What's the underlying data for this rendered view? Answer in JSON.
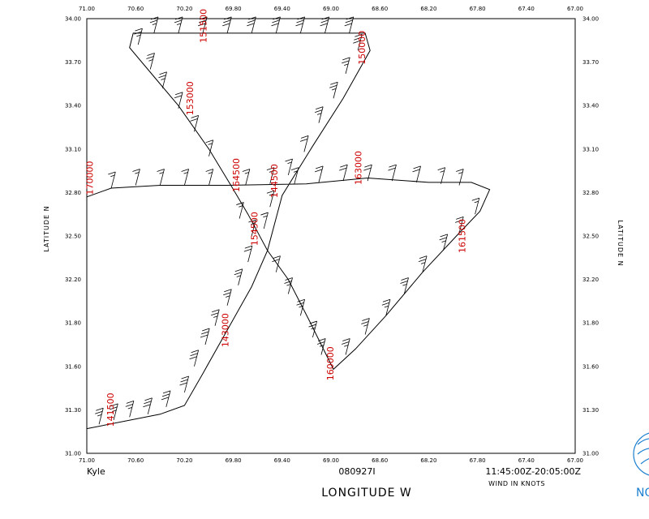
{
  "chart_data": {
    "type": "line",
    "title": "",
    "xlabel": "LONGITUDE  W",
    "ylabel_left": "LATITUDE  N",
    "ylabel_right": "LATITUDE  N",
    "xlim": [
      71.0,
      67.0
    ],
    "ylim": [
      31.0,
      34.0
    ],
    "x_ticks": [
      "71.00",
      "70.60",
      "70.20",
      "69.80",
      "69.40",
      "69.00",
      "68.60",
      "68.20",
      "67.80",
      "67.40",
      "67.00"
    ],
    "y_ticks": [
      "31.00",
      "31.30",
      "31.60",
      "31.80",
      "32.20",
      "32.50",
      "32.80",
      "33.10",
      "33.40",
      "33.70",
      "34.00"
    ],
    "grid": false,
    "footer": {
      "storm": "Kyle",
      "mission": "080927I",
      "time_range": "11:45:00Z-20:05:00Z",
      "units": "WIND IN KNOTS"
    },
    "logo_text": "NO",
    "time_labels": [
      {
        "text": "141500",
        "lon": 70.78,
        "lat": 31.3
      },
      {
        "text": "143000",
        "lon": 69.84,
        "lat": 31.85
      },
      {
        "text": "144500",
        "lon": 69.44,
        "lat": 32.88
      },
      {
        "text": "150000",
        "lon": 68.72,
        "lat": 33.8
      },
      {
        "text": "151500",
        "lon": 70.02,
        "lat": 33.95
      },
      {
        "text": "153000",
        "lon": 70.13,
        "lat": 33.45
      },
      {
        "text": "154500",
        "lon": 69.6,
        "lat": 32.55
      },
      {
        "text": "160000",
        "lon": 68.98,
        "lat": 31.62
      },
      {
        "text": "161500",
        "lon": 67.9,
        "lat": 32.5
      },
      {
        "text": "163000",
        "lon": 68.75,
        "lat": 32.97
      },
      {
        "text": "164500",
        "lon": 69.75,
        "lat": 32.92
      },
      {
        "text": "170000",
        "lon": 70.95,
        "lat": 32.9
      }
    ],
    "series": [
      {
        "points": [
          [
            71.0,
            31.17
          ],
          [
            70.4,
            31.27
          ],
          [
            70.2,
            31.33
          ],
          [
            70.05,
            31.55
          ],
          [
            69.85,
            31.85
          ],
          [
            69.65,
            32.15
          ],
          [
            69.52,
            32.4
          ],
          [
            69.4,
            32.78
          ],
          [
            69.15,
            33.12
          ],
          [
            68.9,
            33.45
          ],
          [
            68.68,
            33.78
          ],
          [
            68.72,
            33.9
          ],
          [
            70.62,
            33.9
          ],
          [
            70.65,
            33.8
          ],
          [
            70.45,
            33.6
          ],
          [
            70.25,
            33.4
          ],
          [
            70.0,
            33.1
          ],
          [
            69.82,
            32.85
          ],
          [
            69.68,
            32.65
          ],
          [
            69.52,
            32.4
          ],
          [
            69.35,
            32.2
          ],
          [
            69.18,
            31.92
          ],
          [
            68.98,
            31.58
          ],
          [
            68.8,
            31.72
          ],
          [
            68.55,
            31.95
          ],
          [
            68.25,
            32.25
          ],
          [
            67.95,
            32.52
          ],
          [
            67.78,
            32.67
          ],
          [
            67.7,
            32.82
          ],
          [
            67.85,
            32.87
          ],
          [
            68.2,
            32.87
          ],
          [
            68.7,
            32.9
          ],
          [
            69.2,
            32.86
          ],
          [
            69.85,
            32.85
          ],
          [
            70.4,
            32.85
          ],
          [
            70.8,
            32.83
          ],
          [
            71.0,
            32.77
          ]
        ],
        "barbs_kt": [
          [
            70.9,
            31.2,
            25
          ],
          [
            70.78,
            31.23,
            25
          ],
          [
            70.65,
            31.25,
            25
          ],
          [
            70.5,
            31.27,
            30
          ],
          [
            70.35,
            31.32,
            30
          ],
          [
            70.2,
            31.42,
            30
          ],
          [
            70.12,
            31.6,
            30
          ],
          [
            70.03,
            31.75,
            30
          ],
          [
            69.95,
            31.88,
            25
          ],
          [
            69.85,
            32.02,
            25
          ],
          [
            69.76,
            32.16,
            25
          ],
          [
            69.68,
            32.32,
            20
          ],
          [
            69.55,
            32.55,
            15
          ],
          [
            69.5,
            32.7,
            15
          ],
          [
            69.35,
            32.92,
            15
          ],
          [
            69.22,
            33.08,
            20
          ],
          [
            69.1,
            33.28,
            25
          ],
          [
            68.98,
            33.45,
            25
          ],
          [
            68.88,
            33.62,
            25
          ],
          [
            68.78,
            33.78,
            30
          ],
          [
            68.85,
            33.9,
            30
          ],
          [
            69.05,
            33.9,
            30
          ],
          [
            69.25,
            33.9,
            30
          ],
          [
            69.45,
            33.9,
            30
          ],
          [
            69.65,
            33.9,
            30
          ],
          [
            69.85,
            33.9,
            30
          ],
          [
            70.05,
            33.9,
            30
          ],
          [
            70.25,
            33.9,
            25
          ],
          [
            70.45,
            33.9,
            25
          ],
          [
            70.58,
            33.82,
            25
          ],
          [
            70.48,
            33.65,
            25
          ],
          [
            70.38,
            33.52,
            25
          ],
          [
            70.25,
            33.38,
            20
          ],
          [
            70.12,
            33.22,
            20
          ],
          [
            70.0,
            33.05,
            15
          ],
          [
            69.75,
            32.62,
            15
          ],
          [
            69.65,
            32.5,
            15
          ],
          [
            69.45,
            32.25,
            20
          ],
          [
            69.35,
            32.1,
            25
          ],
          [
            69.25,
            31.95,
            25
          ],
          [
            69.15,
            31.8,
            25
          ],
          [
            69.08,
            31.68,
            25
          ],
          [
            68.88,
            31.68,
            25
          ],
          [
            68.72,
            31.82,
            25
          ],
          [
            68.55,
            31.95,
            25
          ],
          [
            68.4,
            32.1,
            25
          ],
          [
            68.25,
            32.25,
            25
          ],
          [
            68.08,
            32.4,
            25
          ],
          [
            67.95,
            32.52,
            20
          ],
          [
            67.82,
            32.65,
            15
          ],
          [
            67.95,
            32.85,
            15
          ],
          [
            68.1,
            32.86,
            15
          ],
          [
            68.3,
            32.87,
            20
          ],
          [
            68.5,
            32.88,
            20
          ],
          [
            68.7,
            32.88,
            20
          ],
          [
            68.9,
            32.88,
            20
          ],
          [
            69.1,
            32.87,
            20
          ],
          [
            69.3,
            32.86,
            15
          ],
          [
            69.5,
            32.86,
            15
          ],
          [
            69.7,
            32.85,
            15
          ],
          [
            70.0,
            32.85,
            15
          ],
          [
            70.2,
            32.85,
            15
          ],
          [
            70.4,
            32.85,
            15
          ],
          [
            70.6,
            32.85,
            15
          ],
          [
            70.8,
            32.83,
            15
          ]
        ]
      }
    ]
  }
}
